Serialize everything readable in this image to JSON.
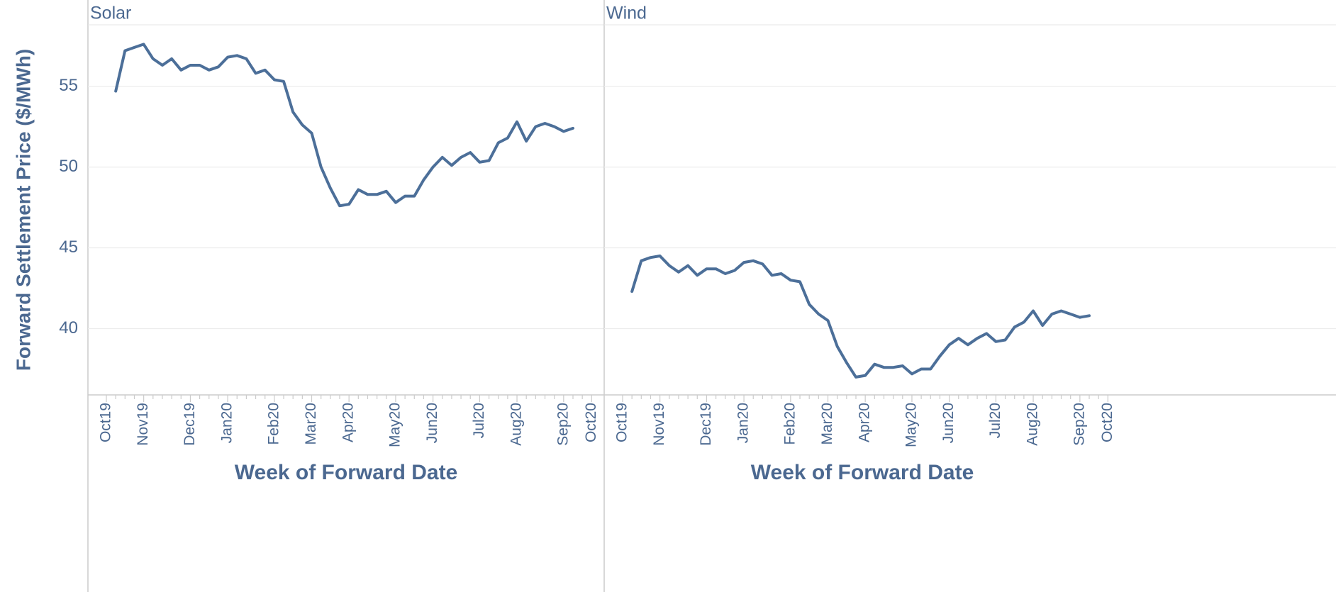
{
  "y_label": "Forward Settlement Price ($/MWh)",
  "chart_data": [
    {
      "type": "line",
      "title": "Solar",
      "x_label": "Week of Forward Date",
      "categories": [
        "Oct19",
        null,
        null,
        null,
        "Nov19",
        null,
        null,
        null,
        null,
        "Dec19",
        null,
        null,
        null,
        "Jan20",
        null,
        null,
        null,
        null,
        "Feb20",
        null,
        null,
        null,
        "Mar20",
        null,
        null,
        null,
        "Apr20",
        null,
        null,
        null,
        null,
        "May20",
        null,
        null,
        null,
        "Jun20",
        null,
        null,
        null,
        null,
        "Jul20",
        null,
        null,
        null,
        "Aug20",
        null,
        null,
        null,
        null,
        "Sep20",
        null,
        null,
        "Oct20"
      ],
      "values": [
        null,
        54.7,
        57.2,
        57.4,
        57.6,
        56.7,
        56.3,
        56.7,
        56.0,
        56.3,
        56.3,
        56.0,
        56.2,
        56.8,
        56.9,
        56.7,
        55.8,
        56.0,
        55.4,
        55.3,
        53.4,
        52.6,
        52.1,
        50.0,
        48.7,
        47.6,
        47.7,
        48.6,
        48.3,
        48.3,
        48.5,
        47.8,
        48.2,
        48.2,
        49.2,
        50.0,
        50.6,
        50.1,
        50.6,
        50.9,
        50.3,
        50.4,
        51.5,
        51.8,
        52.8,
        51.6,
        52.5,
        52.7,
        52.5,
        52.2,
        52.4,
        null,
        null
      ],
      "color": "#4c6f99",
      "ylim": [
        35.9,
        58.8
      ],
      "yticks": [
        40,
        45,
        50,
        55
      ],
      "grid": true
    },
    {
      "type": "line",
      "title": "Wind",
      "x_label": "Week of Forward Date",
      "categories": [
        "Oct19",
        null,
        null,
        null,
        "Nov19",
        null,
        null,
        null,
        null,
        "Dec19",
        null,
        null,
        null,
        "Jan20",
        null,
        null,
        null,
        null,
        "Feb20",
        null,
        null,
        null,
        "Mar20",
        null,
        null,
        null,
        "Apr20",
        null,
        null,
        null,
        null,
        "May20",
        null,
        null,
        null,
        "Jun20",
        null,
        null,
        null,
        null,
        "Jul20",
        null,
        null,
        null,
        "Aug20",
        null,
        null,
        null,
        null,
        "Sep20",
        null,
        null,
        "Oct20"
      ],
      "values": [
        null,
        42.3,
        44.2,
        44.4,
        44.5,
        43.9,
        43.5,
        43.9,
        43.3,
        43.7,
        43.7,
        43.4,
        43.6,
        44.1,
        44.2,
        44.0,
        43.3,
        43.4,
        43.0,
        42.9,
        41.5,
        40.9,
        40.5,
        38.9,
        37.9,
        37.0,
        37.1,
        37.8,
        37.6,
        37.6,
        37.7,
        37.2,
        37.5,
        37.5,
        38.3,
        39.0,
        39.4,
        39.0,
        39.4,
        39.7,
        39.2,
        39.3,
        40.1,
        40.4,
        41.1,
        40.2,
        40.9,
        41.1,
        40.9,
        40.7,
        40.8,
        null,
        null
      ],
      "color": "#4c6f99",
      "ylim": [
        35.9,
        58.8
      ],
      "grid": true
    }
  ]
}
